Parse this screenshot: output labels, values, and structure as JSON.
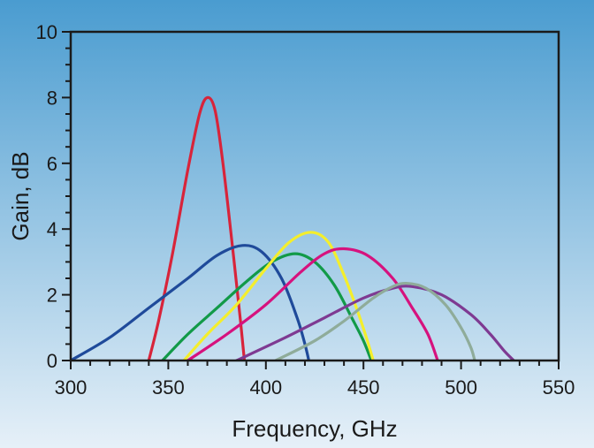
{
  "chart_data": {
    "type": "line",
    "title": "",
    "xlabel": "Frequency, GHz",
    "ylabel": "Gain, dB",
    "xlim": [
      300,
      550
    ],
    "ylim": [
      0,
      10
    ],
    "x_ticks": [
      300,
      350,
      400,
      450,
      500,
      550
    ],
    "y_ticks": [
      0,
      2,
      4,
      6,
      8,
      10
    ],
    "x_tick_labels": [
      "300",
      "350",
      "400",
      "450",
      "500",
      "550"
    ],
    "y_tick_labels": [
      "0",
      "2",
      "4",
      "6",
      "8",
      "10"
    ],
    "grid": false,
    "legend": "none",
    "background": {
      "top": "#4a9cd0",
      "bottom": "#e6f0f8"
    },
    "series": [
      {
        "color": "#d8243a",
        "points": [
          [
            340,
            0
          ],
          [
            345,
            1.2
          ],
          [
            352,
            3.2
          ],
          [
            360,
            5.8
          ],
          [
            366,
            7.5
          ],
          [
            370,
            8.0
          ],
          [
            374,
            7.6
          ],
          [
            378,
            6.0
          ],
          [
            383,
            3.4
          ],
          [
            387,
            1.2
          ],
          [
            389,
            0
          ]
        ]
      },
      {
        "color": "#1f4a9a",
        "points": [
          [
            300,
            0
          ],
          [
            320,
            0.7
          ],
          [
            340,
            1.6
          ],
          [
            360,
            2.5
          ],
          [
            375,
            3.2
          ],
          [
            388,
            3.5
          ],
          [
            398,
            3.3
          ],
          [
            408,
            2.5
          ],
          [
            416,
            1.3
          ],
          [
            420,
            0.5
          ],
          [
            422,
            0
          ]
        ]
      },
      {
        "color": "#129a48",
        "points": [
          [
            347,
            0
          ],
          [
            360,
            0.8
          ],
          [
            375,
            1.6
          ],
          [
            390,
            2.4
          ],
          [
            403,
            3.0
          ],
          [
            415,
            3.25
          ],
          [
            425,
            3.0
          ],
          [
            435,
            2.3
          ],
          [
            444,
            1.3
          ],
          [
            450,
            0.6
          ],
          [
            454,
            0
          ]
        ]
      },
      {
        "color": "#f4ee2c",
        "points": [
          [
            358,
            0
          ],
          [
            370,
            0.8
          ],
          [
            385,
            1.7
          ],
          [
            400,
            2.8
          ],
          [
            412,
            3.6
          ],
          [
            423,
            3.9
          ],
          [
            432,
            3.6
          ],
          [
            440,
            2.6
          ],
          [
            447,
            1.5
          ],
          [
            452,
            0.6
          ],
          [
            455,
            0
          ]
        ]
      },
      {
        "color": "#d6127e",
        "points": [
          [
            360,
            0
          ],
          [
            380,
            0.8
          ],
          [
            400,
            1.7
          ],
          [
            418,
            2.7
          ],
          [
            430,
            3.25
          ],
          [
            440,
            3.4
          ],
          [
            452,
            3.2
          ],
          [
            465,
            2.5
          ],
          [
            475,
            1.6
          ],
          [
            483,
            0.8
          ],
          [
            488,
            0
          ]
        ]
      },
      {
        "color": "#7e3a92",
        "points": [
          [
            385,
            0
          ],
          [
            410,
            0.7
          ],
          [
            430,
            1.3
          ],
          [
            450,
            1.9
          ],
          [
            465,
            2.2
          ],
          [
            475,
            2.25
          ],
          [
            490,
            2.0
          ],
          [
            505,
            1.4
          ],
          [
            515,
            0.8
          ],
          [
            522,
            0.3
          ],
          [
            527,
            0
          ]
        ]
      },
      {
        "color": "#8fac9a",
        "points": [
          [
            405,
            0
          ],
          [
            425,
            0.6
          ],
          [
            440,
            1.2
          ],
          [
            455,
            1.9
          ],
          [
            465,
            2.25
          ],
          [
            472,
            2.35
          ],
          [
            482,
            2.2
          ],
          [
            492,
            1.7
          ],
          [
            500,
            1.0
          ],
          [
            505,
            0.4
          ],
          [
            507,
            0
          ]
        ]
      }
    ]
  }
}
